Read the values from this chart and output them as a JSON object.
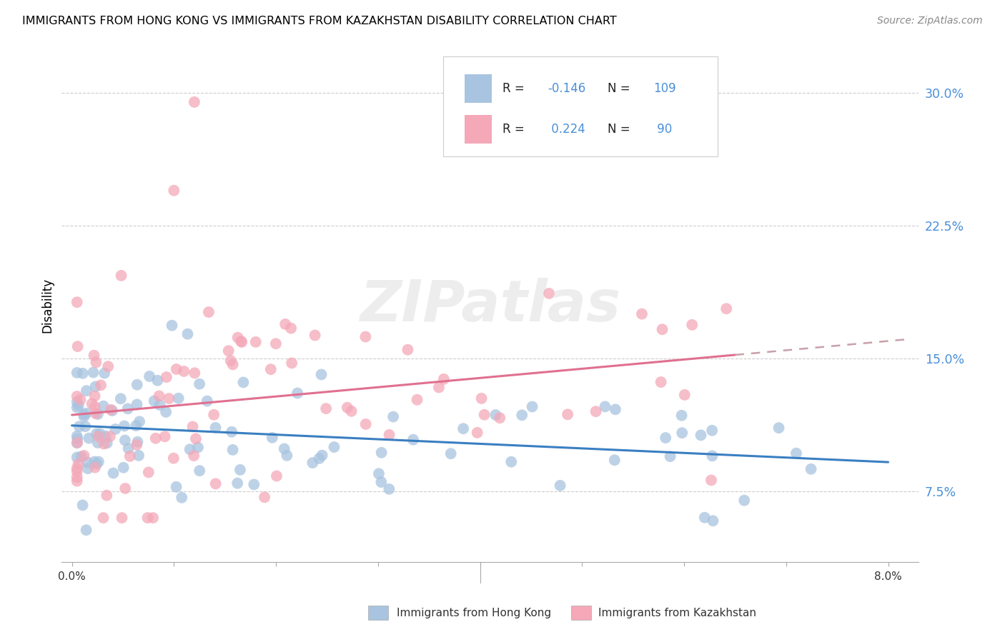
{
  "title": "IMMIGRANTS FROM HONG KONG VS IMMIGRANTS FROM KAZAKHSTAN DISABILITY CORRELATION CHART",
  "source": "Source: ZipAtlas.com",
  "ylabel": "Disability",
  "x_min": 0.0,
  "x_max": 0.08,
  "y_min": 0.035,
  "y_max": 0.325,
  "yticks": [
    0.075,
    0.15,
    0.225,
    0.3
  ],
  "ytick_labels": [
    "7.5%",
    "15.0%",
    "22.5%",
    "30.0%"
  ],
  "legend_r_hk": "-0.146",
  "legend_n_hk": "109",
  "legend_r_kz": "0.224",
  "legend_n_kz": "90",
  "color_hk": "#a8c4e0",
  "color_kz": "#f4a8b8",
  "line_color_hk": "#3a7fc1",
  "line_color_kz": "#e07090",
  "line_color_kz_ext": "#ccbbbb",
  "watermark": "ZIPatlas",
  "text_blue": "#4a90d9"
}
